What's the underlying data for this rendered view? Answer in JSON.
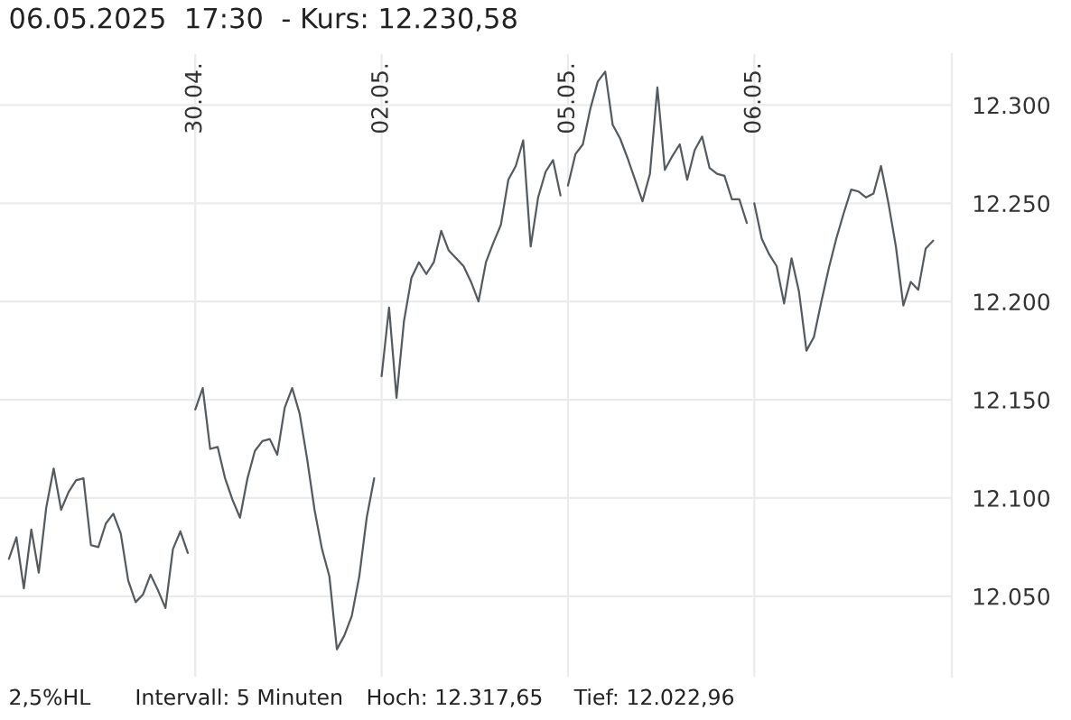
{
  "chart_data": {
    "type": "line",
    "title": "06.05.2025  17:30  - Kurs: 12.230,58",
    "annotations": [
      "2,5%HL",
      "Intervall: 5 Minuten",
      "Hoch: 12.317,65",
      "Tief: 12.022,96"
    ],
    "categories": [
      null,
      null,
      null,
      null,
      null,
      null,
      null,
      null,
      null,
      null,
      null,
      null,
      null,
      null,
      null,
      null,
      null,
      null,
      null,
      null,
      null,
      null,
      null,
      null,
      null,
      "30.04.",
      null,
      null,
      null,
      null,
      null,
      null,
      null,
      null,
      null,
      null,
      null,
      null,
      null,
      null,
      null,
      null,
      null,
      null,
      null,
      null,
      null,
      null,
      null,
      null,
      "02.05.",
      null,
      null,
      null,
      null,
      null,
      null,
      null,
      null,
      null,
      null,
      null,
      null,
      null,
      null,
      null,
      null,
      null,
      null,
      null,
      null,
      null,
      null,
      null,
      null,
      "05.05.",
      null,
      null,
      null,
      null,
      null,
      null,
      null,
      null,
      null,
      null,
      null,
      null,
      null,
      null,
      null,
      null,
      null,
      null,
      null,
      null,
      null,
      null,
      null,
      null,
      "06.05.",
      null,
      null,
      null,
      null,
      null,
      null,
      null,
      null,
      null,
      null,
      null,
      null,
      null,
      null,
      null,
      null,
      null,
      null,
      null,
      null,
      null,
      null,
      null,
      null
    ],
    "series": [
      {
        "color": "#555a5f",
        "values": [
          12069,
          12080,
          12054,
          12084,
          12062,
          12095,
          12115,
          12094,
          12103,
          12109,
          12110,
          12076,
          12075,
          12087,
          12092,
          12082,
          12058,
          12047,
          12051,
          12061,
          12053,
          12044,
          12074,
          12083,
          12072,
          null,
          null,
          null,
          null,
          null,
          null,
          null,
          null,
          null,
          null,
          null,
          null,
          null,
          null,
          null,
          null,
          null,
          null,
          null,
          null,
          null,
          null,
          null,
          null,
          null,
          null,
          null,
          null,
          null,
          null,
          null,
          null,
          null,
          null,
          null,
          null,
          null,
          null,
          null,
          null,
          null,
          null,
          null,
          null,
          null,
          null,
          null,
          null,
          null,
          null,
          null,
          null,
          null,
          null,
          null,
          null,
          null,
          null,
          null,
          null,
          null,
          null,
          null,
          null,
          null,
          null,
          null,
          null,
          null,
          null,
          null,
          null,
          null,
          null,
          null,
          null,
          null,
          null,
          null,
          null,
          null,
          null,
          null,
          null,
          null,
          null,
          null,
          null,
          null,
          null,
          null,
          null,
          null,
          null,
          null,
          null,
          null,
          null,
          null,
          null
        ]
      },
      {
        "color": "#555a5f",
        "values": [
          null,
          null,
          null,
          null,
          null,
          null,
          null,
          null,
          null,
          null,
          null,
          null,
          null,
          null,
          null,
          null,
          null,
          null,
          null,
          null,
          null,
          null,
          null,
          null,
          null,
          12145,
          12156,
          12125,
          12126,
          12110,
          12099,
          12090,
          12110,
          12124,
          12129,
          12130,
          12122,
          12146,
          12156,
          12143,
          12120,
          12094,
          12074,
          12060,
          12023,
          12030,
          12040,
          12060,
          12090,
          12110,
          null,
          null,
          null,
          null,
          null,
          null,
          null,
          null,
          null,
          null,
          null,
          null,
          null,
          null,
          null,
          null,
          null,
          null,
          null,
          null,
          null,
          null,
          null,
          null,
          null,
          null,
          null,
          null,
          null,
          null,
          null,
          null,
          null,
          null,
          null,
          null,
          null,
          null,
          null,
          null,
          null,
          null,
          null,
          null,
          null,
          null,
          null,
          null,
          null,
          null,
          null,
          null,
          null,
          null,
          null,
          null,
          null,
          null,
          null,
          null,
          null,
          null,
          null,
          null,
          null,
          null,
          null,
          null,
          null,
          null,
          null,
          null,
          null,
          null,
          null
        ]
      },
      {
        "color": "#555a5f",
        "values": [
          null,
          null,
          null,
          null,
          null,
          null,
          null,
          null,
          null,
          null,
          null,
          null,
          null,
          null,
          null,
          null,
          null,
          null,
          null,
          null,
          null,
          null,
          null,
          null,
          null,
          null,
          null,
          null,
          null,
          null,
          null,
          null,
          null,
          null,
          null,
          null,
          null,
          null,
          null,
          null,
          null,
          null,
          null,
          null,
          null,
          null,
          null,
          null,
          null,
          null,
          12162,
          12197,
          12151,
          12190,
          12212,
          12220,
          12214,
          12220,
          12236,
          12226,
          12222,
          12218,
          12210,
          12200,
          12220,
          12230,
          12239,
          12262,
          12269,
          12282,
          12228,
          12253,
          12266,
          12272,
          12254,
          null,
          null,
          null,
          null,
          null,
          null,
          null,
          null,
          null,
          null,
          null,
          null,
          null,
          null,
          null,
          null,
          null,
          null,
          null,
          null,
          null,
          null,
          null,
          null,
          null,
          null,
          null,
          null,
          null,
          null,
          null,
          null,
          null,
          null,
          null,
          null,
          null,
          null,
          null,
          null,
          null,
          null,
          null,
          null,
          null,
          null,
          null,
          null,
          null,
          null
        ]
      },
      {
        "color": "#555a5f",
        "values": [
          null,
          null,
          null,
          null,
          null,
          null,
          null,
          null,
          null,
          null,
          null,
          null,
          null,
          null,
          null,
          null,
          null,
          null,
          null,
          null,
          null,
          null,
          null,
          null,
          null,
          null,
          null,
          null,
          null,
          null,
          null,
          null,
          null,
          null,
          null,
          null,
          null,
          null,
          null,
          null,
          null,
          null,
          null,
          null,
          null,
          null,
          null,
          null,
          null,
          null,
          null,
          null,
          null,
          null,
          null,
          null,
          null,
          null,
          null,
          null,
          null,
          null,
          null,
          null,
          null,
          null,
          null,
          null,
          null,
          null,
          null,
          null,
          null,
          null,
          null,
          12259,
          12275,
          12280,
          12298,
          12312,
          12317,
          12290,
          12283,
          12273,
          12262,
          12251,
          12265,
          12309,
          12267,
          12274,
          12280,
          12262,
          12277,
          12284,
          12268,
          12265,
          12264,
          12252,
          12252,
          12240,
          null,
          null,
          null,
          null,
          null,
          null,
          null,
          null,
          null,
          null,
          null,
          null,
          null,
          null,
          null,
          null,
          null,
          null,
          null,
          null,
          null,
          null,
          null,
          null,
          null
        ]
      },
      {
        "color": "#555a5f",
        "values": [
          null,
          null,
          null,
          null,
          null,
          null,
          null,
          null,
          null,
          null,
          null,
          null,
          null,
          null,
          null,
          null,
          null,
          null,
          null,
          null,
          null,
          null,
          null,
          null,
          null,
          null,
          null,
          null,
          null,
          null,
          null,
          null,
          null,
          null,
          null,
          null,
          null,
          null,
          null,
          null,
          null,
          null,
          null,
          null,
          null,
          null,
          null,
          null,
          null,
          null,
          null,
          null,
          null,
          null,
          null,
          null,
          null,
          null,
          null,
          null,
          null,
          null,
          null,
          null,
          null,
          null,
          null,
          null,
          null,
          null,
          null,
          null,
          null,
          null,
          null,
          null,
          null,
          null,
          null,
          null,
          null,
          null,
          null,
          null,
          null,
          null,
          null,
          null,
          null,
          null,
          null,
          null,
          null,
          null,
          null,
          null,
          null,
          null,
          null,
          null,
          12250,
          12232,
          12224,
          12218,
          12199,
          12222,
          12205,
          12175,
          12182,
          12200,
          12217,
          12232,
          12245,
          12257,
          12256,
          12253,
          12255,
          12269,
          12250,
          12228,
          12198,
          12210,
          12206,
          12227,
          12231
        ]
      }
    ],
    "ylim": [
      12009,
      12326
    ],
    "yticks": [
      {
        "value": 12050,
        "label": "12.050"
      },
      {
        "value": 12100,
        "label": "12.100"
      },
      {
        "value": 12150,
        "label": "12.150"
      },
      {
        "value": 12200,
        "label": "12.200"
      },
      {
        "value": 12250,
        "label": "12.250"
      },
      {
        "value": 12300,
        "label": "12.300"
      }
    ],
    "grid": true,
    "line_style": "solid",
    "marker": "none"
  }
}
